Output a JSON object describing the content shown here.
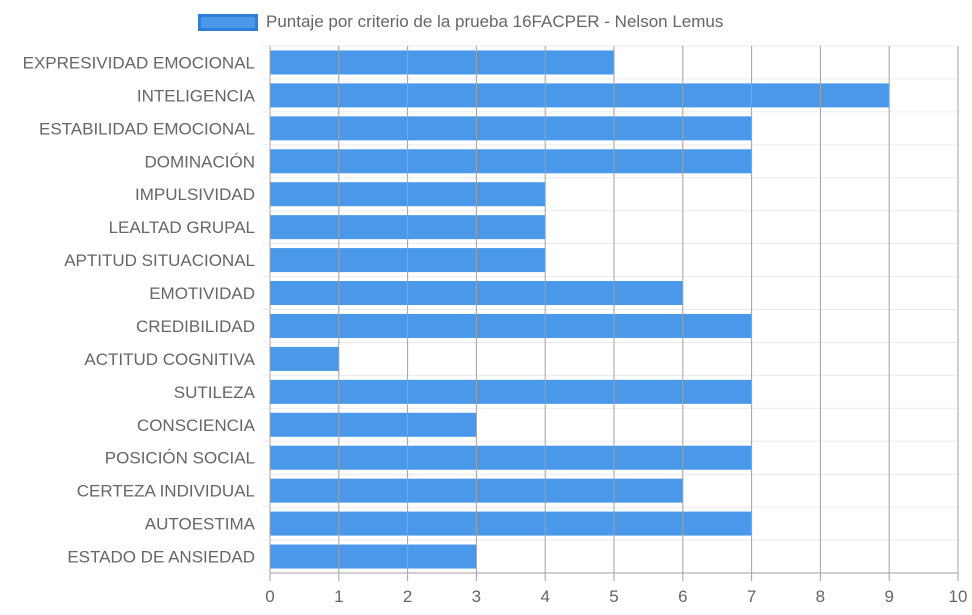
{
  "chart_data": {
    "type": "bar",
    "orientation": "horizontal",
    "categories": [
      "EXPRESIVIDAD EMOCIONAL",
      "INTELIGENCIA",
      "ESTABILIDAD EMOCIONAL",
      "DOMINACIÓN",
      "IMPULSIVIDAD",
      "LEALTAD GRUPAL",
      "APTITUD SITUACIONAL",
      "EMOTIVIDAD",
      "CREDIBILIDAD",
      "ACTITUD COGNITIVA",
      "SUTILEZA",
      "CONSCIENCIA",
      "POSICIÓN SOCIAL",
      "CERTEZA INDIVIDUAL",
      "AUTOESTIMA",
      "ESTADO DE ANSIEDAD"
    ],
    "series": [
      {
        "name": "Puntaje por criterio de la prueba 16FACPER - Nelson Lemus",
        "values": [
          5,
          9,
          7,
          7,
          4,
          4,
          4,
          6,
          7,
          1,
          7,
          3,
          7,
          6,
          7,
          3
        ]
      }
    ],
    "xlim": [
      0,
      10
    ],
    "xticks": [
      "0",
      "1",
      "2",
      "3",
      "4",
      "5",
      "6",
      "7",
      "8",
      "9",
      "10"
    ],
    "grid": true,
    "legend_position": "top",
    "colors": {
      "bar_fill": "#4a98ea",
      "legend_border": "#2f7fd8",
      "grid_major": "#c8c8c8",
      "grid_minor": "#ececec",
      "text": "#666666"
    }
  }
}
